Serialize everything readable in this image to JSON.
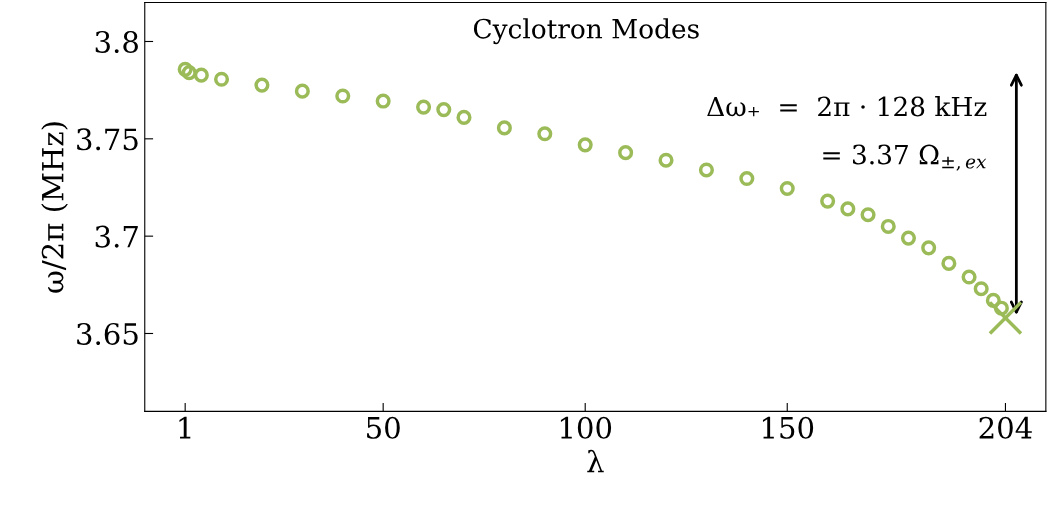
{
  "chart_data": {
    "type": "scatter",
    "title": "Cyclotron Modes",
    "xlabel": "λ",
    "ylabel": "ω/2π (MHz)",
    "xlim": [
      -9,
      214
    ],
    "ylim": [
      3.61,
      3.82
    ],
    "xticks": [
      1,
      50,
      100,
      150,
      204
    ],
    "yticks": [
      3.65,
      3.7,
      3.75,
      3.8
    ],
    "grid": false,
    "marker": "circle",
    "annotations": [
      "Δω₊  =  2π · 128 kHz",
      "= 3.37 Ω$_{±,ex}$"
    ],
    "series": [
      {
        "color": "#9bbb59",
        "x": [
          1,
          2,
          5,
          10,
          20,
          30,
          40,
          50,
          60,
          65,
          70,
          80,
          90,
          100,
          110,
          120,
          130,
          140,
          150,
          160,
          165,
          170,
          175,
          180,
          185,
          190,
          195,
          198,
          201,
          203
        ],
        "values": [
          3.7857,
          3.784,
          3.7827,
          3.7806,
          3.7776,
          3.7745,
          3.772,
          3.7694,
          3.7663,
          3.765,
          3.761,
          3.7556,
          3.7526,
          3.7469,
          3.7429,
          3.739,
          3.734,
          3.7296,
          3.7245,
          3.718,
          3.714,
          3.711,
          3.705,
          3.699,
          3.694,
          3.686,
          3.679,
          3.673,
          3.667,
          3.663
        ]
      },
      {
        "color": "#9bbb59",
        "marker": "cross",
        "x": [
          204
        ],
        "values": [
          3.658
        ]
      }
    ]
  }
}
